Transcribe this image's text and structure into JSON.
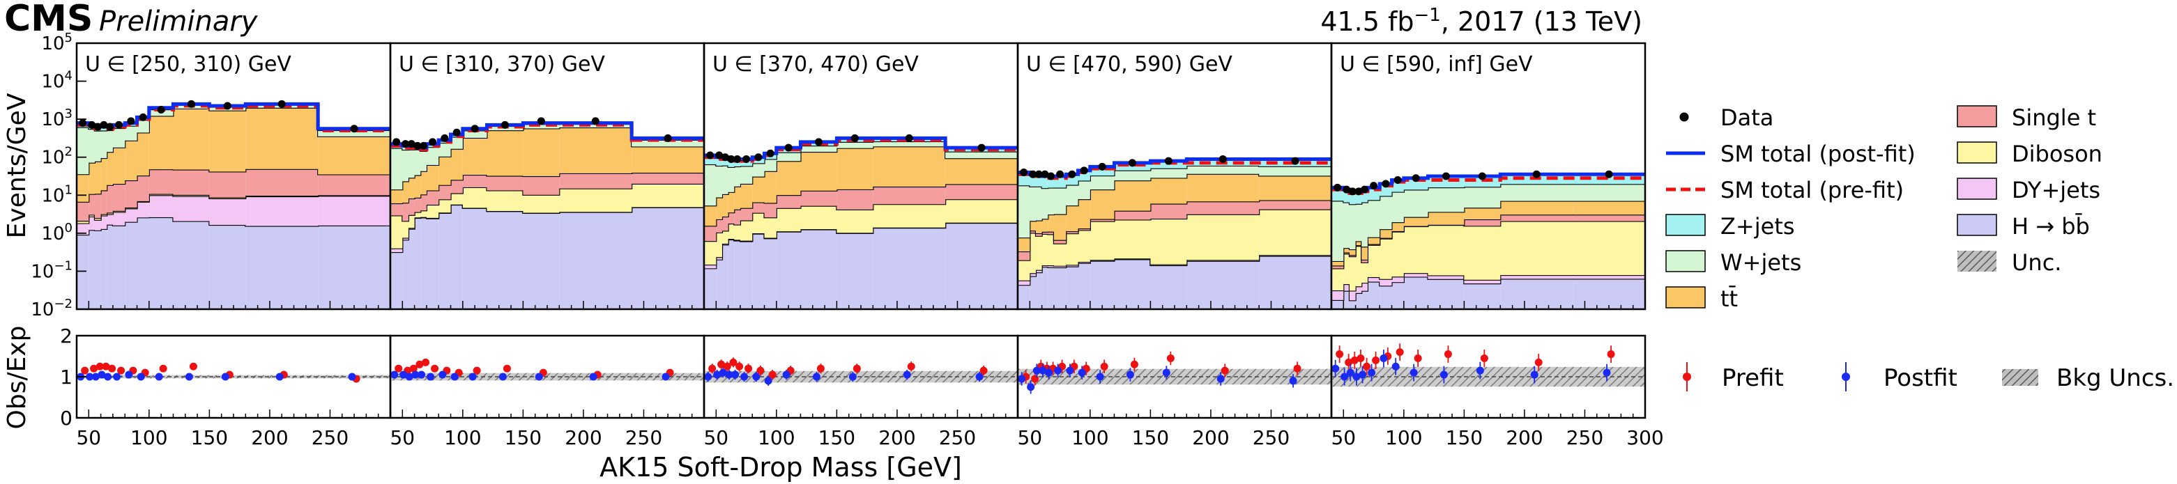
{
  "header": {
    "experiment": "CMS",
    "status": "Preliminary",
    "lumi": "41.5 fb",
    "lumi_exponent": "−1",
    "lumi_suffix": ", 2017 (13 TeV)"
  },
  "axes": {
    "ylabel_top": "Events/GeV",
    "ylabel_bottom": "Obs/Exp",
    "xlabel": "AK15 Soft-Drop Mass [GeV]"
  },
  "ratio_legend": {
    "prefit": "Prefit",
    "postfit": "Postfit",
    "unc": "Bkg Uncs."
  },
  "chart_data": {
    "type": "bar",
    "subtype": "stacked-step-histogram with data points and ratio panel",
    "x_range": [
      40,
      300
    ],
    "x_ticks": [
      50,
      100,
      150,
      200,
      250
    ],
    "x_ticks_last_panel": [
      50,
      100,
      150,
      200,
      250,
      300
    ],
    "y_scale": "log",
    "y_range": [
      0.01,
      100000
    ],
    "y_tick_exponents": [
      -2,
      -1,
      0,
      1,
      2,
      3,
      4,
      5
    ],
    "ratio_range": [
      0,
      2
    ],
    "ratio_ticks": [
      0,
      1,
      2
    ],
    "bin_edges": [
      40,
      50,
      55,
      60,
      65,
      70,
      80,
      90,
      100,
      120,
      150,
      180,
      240,
      300
    ],
    "bin_centers": [
      45,
      52.5,
      57.5,
      62.5,
      67.5,
      75,
      85,
      95,
      110,
      135,
      165,
      210,
      270
    ],
    "stack_order": [
      "H → bb̄",
      "DY+jets",
      "Diboson",
      "Single t",
      "tt̄",
      "W+jets",
      "Z+jets"
    ],
    "colors": {
      "Z+jets": "#a4f1f2",
      "W+jets": "#d4f6d4",
      "tt̄": "#fbc766",
      "Single t": "#f49ea0",
      "Diboson": "#fdf7a4",
      "DY+jets": "#f4c6f6",
      "H → bb̄": "#cccbf6",
      "unc": "#aaaaaa",
      "data": "#000000",
      "post_fit": "#0b2eef",
      "pre_fit": "#ee1111",
      "prefit_ratio": "#ee1111",
      "postfit_ratio": "#1a2af4"
    },
    "panels": [
      {
        "label": "U ∈ [250, 310) GeV",
        "stack_exp": {
          "H → bb̄": [
            -0.5,
            -0.4,
            -0.35,
            -0.3,
            -0.25,
            -0.2,
            -0.1,
            0.0,
            0.05,
            0.15,
            0.2,
            0.1,
            0.1
          ],
          "DY+jets": [
            -0.5,
            -0.3,
            -0.4,
            -0.2,
            -0.3,
            -0.1,
            0.0,
            0.2,
            0.5,
            0.7,
            0.8,
            0.8,
            0.8
          ],
          "Diboson": [
            -1.0,
            -1.0,
            -1.0,
            -1.0,
            -1.0,
            -1.0,
            -1.0,
            -1.0,
            -0.5,
            -0.3,
            -0.3,
            -0.5,
            -0.5
          ],
          "Single t": [
            0.2,
            0.4,
            0.5,
            0.6,
            0.7,
            0.8,
            0.9,
            1.0,
            1.2,
            1.4,
            1.5,
            1.5,
            1.3
          ],
          "tt̄": [
            1.0,
            1.3,
            1.4,
            1.5,
            1.6,
            1.8,
            2.0,
            2.2,
            2.7,
            3.1,
            3.2,
            3.2,
            2.4
          ],
          "W+jets": [
            2.3,
            2.2,
            2.2,
            2.2,
            2.1,
            2.2,
            2.2,
            2.3,
            2.4,
            2.5,
            2.6,
            2.5,
            2.1
          ],
          "Z+jets": [
            1.8,
            1.7,
            1.7,
            1.7,
            1.6,
            1.7,
            1.7,
            1.8,
            1.9,
            2.0,
            2.1,
            2.0,
            1.6
          ]
        },
        "post_fit_exp": [
          2.9,
          2.85,
          2.8,
          2.8,
          2.8,
          2.85,
          2.9,
          3.05,
          3.3,
          3.4,
          3.35,
          3.4,
          2.75
        ],
        "pre_fit_exp": [
          2.85,
          2.8,
          2.75,
          2.75,
          2.75,
          2.8,
          2.85,
          3.0,
          3.25,
          3.35,
          3.3,
          3.35,
          2.7
        ],
        "data_exp": [
          2.9,
          2.85,
          2.8,
          2.85,
          2.8,
          2.85,
          2.95,
          3.05,
          3.25,
          3.4,
          3.35,
          3.4,
          2.75
        ],
        "prefit_ratio": [
          1.15,
          1.2,
          1.25,
          1.25,
          1.2,
          1.15,
          1.15,
          1.1,
          1.2,
          1.25,
          1.05,
          1.05,
          0.95
        ],
        "postfit_ratio": [
          1.0,
          1.0,
          1.0,
          1.05,
          1.0,
          1.0,
          1.05,
          1.0,
          1.0,
          1.0,
          1.0,
          1.0,
          1.0
        ]
      },
      {
        "label": "U ∈ [310, 370) GeV",
        "stack_exp": {
          "H → bb̄": [
            -0.9,
            -0.6,
            -0.3,
            0.0,
            0.0,
            0.0,
            0.1,
            0.3,
            0.3,
            0.4,
            0.4,
            0.4,
            0.4
          ],
          "DY+jets": [
            -1.5,
            -1.5,
            -1.5,
            -1.5,
            -1.5,
            -1.5,
            -1.5,
            -1.5,
            -1.5,
            -1.5,
            -1.5,
            -1.5,
            -1.5
          ],
          "Diboson": [
            0.0,
            -0.3,
            -0.2,
            -0.4,
            -0.3,
            0.1,
            0.2,
            0.3,
            0.7,
            0.8,
            0.7,
            0.9,
            0.9
          ],
          "Single t": [
            0.1,
            0.2,
            0.3,
            0.3,
            0.4,
            0.5,
            0.6,
            0.7,
            0.9,
            1.1,
            1.2,
            1.2,
            1.0
          ],
          "tt̄": [
            0.5,
            0.8,
            0.9,
            1.0,
            1.1,
            1.3,
            1.5,
            1.7,
            2.1,
            2.5,
            2.6,
            2.6,
            1.9
          ],
          "W+jets": [
            1.8,
            1.7,
            1.7,
            1.7,
            1.6,
            1.7,
            1.7,
            1.8,
            1.9,
            2.0,
            2.1,
            2.0,
            1.7
          ],
          "Z+jets": [
            1.3,
            1.2,
            1.2,
            1.2,
            1.1,
            1.2,
            1.2,
            1.3,
            1.4,
            1.5,
            1.6,
            1.5,
            1.2
          ]
        },
        "post_fit_exp": [
          2.35,
          2.3,
          2.3,
          2.3,
          2.25,
          2.35,
          2.45,
          2.6,
          2.75,
          2.85,
          2.9,
          2.9,
          2.5
        ],
        "pre_fit_exp": [
          2.3,
          2.25,
          2.25,
          2.25,
          2.2,
          2.3,
          2.4,
          2.55,
          2.7,
          2.8,
          2.85,
          2.85,
          2.45
        ],
        "data_exp": [
          2.4,
          2.35,
          2.35,
          2.3,
          2.3,
          2.4,
          2.5,
          2.65,
          2.75,
          2.85,
          2.95,
          2.95,
          2.5
        ],
        "prefit_ratio": [
          1.2,
          1.15,
          1.2,
          1.3,
          1.35,
          1.2,
          1.15,
          1.1,
          1.15,
          1.2,
          1.1,
          1.05,
          1.1
        ],
        "postfit_ratio": [
          1.05,
          1.05,
          1.0,
          1.05,
          1.05,
          1.0,
          1.05,
          1.0,
          1.0,
          1.0,
          1.0,
          1.0,
          1.0
        ]
      },
      {
        "label": "U ∈ [370, 470) GeV",
        "stack_exp": {
          "H → bb̄": [
            -1.2,
            -1.0,
            -0.6,
            -0.4,
            -0.5,
            -0.4,
            -0.2,
            -0.3,
            -0.1,
            0.0,
            -0.1,
            0.0,
            0.0
          ],
          "DY+jets": [
            -1.8,
            -1.8,
            -1.8,
            -1.8,
            -1.8,
            -1.8,
            -1.8,
            -1.8,
            -1.8,
            -1.8,
            -1.8,
            -1.8,
            -1.8
          ],
          "Diboson": [
            -0.6,
            -0.4,
            -0.5,
            -0.2,
            -0.3,
            0.0,
            0.2,
            0.1,
            0.4,
            0.5,
            0.4,
            0.5,
            0.5
          ],
          "Single t": [
            -0.3,
            -0.2,
            -0.1,
            0.0,
            0.1,
            0.2,
            0.3,
            0.4,
            0.6,
            0.8,
            0.9,
            0.9,
            0.8
          ],
          "tt̄": [
            0.3,
            0.5,
            0.6,
            0.7,
            0.8,
            1.0,
            1.2,
            1.4,
            1.7,
            2.0,
            2.1,
            2.1,
            1.6
          ],
          "W+jets": [
            1.5,
            1.4,
            1.4,
            1.4,
            1.3,
            1.4,
            1.4,
            1.5,
            1.6,
            1.7,
            1.8,
            1.7,
            1.4
          ],
          "Z+jets": [
            1.4,
            1.3,
            1.3,
            1.3,
            1.2,
            1.3,
            1.3,
            1.4,
            1.5,
            1.6,
            1.7,
            1.6,
            1.3
          ]
        },
        "post_fit_exp": [
          2.05,
          2.0,
          2.0,
          1.95,
          1.95,
          1.95,
          2.0,
          2.1,
          2.25,
          2.4,
          2.5,
          2.5,
          2.25
        ],
        "pre_fit_exp": [
          2.0,
          1.95,
          1.95,
          1.9,
          1.9,
          1.9,
          1.95,
          2.05,
          2.2,
          2.35,
          2.45,
          2.45,
          2.2
        ],
        "data_exp": [
          2.05,
          2.05,
          2.0,
          1.95,
          1.95,
          1.95,
          2.0,
          2.1,
          2.25,
          2.4,
          2.5,
          2.5,
          2.25
        ],
        "prefit_ratio": [
          1.2,
          1.3,
          1.25,
          1.35,
          1.25,
          1.2,
          1.15,
          1.05,
          1.15,
          1.2,
          1.2,
          1.25,
          1.15
        ],
        "postfit_ratio": [
          1.0,
          1.05,
          1.1,
          1.05,
          1.05,
          1.0,
          1.0,
          0.9,
          1.05,
          1.0,
          1.0,
          1.05,
          1.0
        ]
      },
      {
        "label": "U ∈ [470, 590) GeV",
        "stack_exp": {
          "H → bb̄": [
            -1.5,
            -1.3,
            -1.2,
            -1.0,
            -1.1,
            -1.0,
            -1.0,
            -0.9,
            -0.8,
            -0.7,
            -0.8,
            -0.8,
            -0.8
          ],
          "DY+jets": [
            -2.0,
            -2.0,
            -2.0,
            -2.0,
            -2.0,
            -2.0,
            -2.0,
            -2.0,
            -2.0,
            -2.0,
            -2.0,
            -2.0,
            -2.0
          ],
          "Diboson": [
            -1.0,
            -0.2,
            -0.3,
            -0.2,
            -0.3,
            -0.5,
            -0.2,
            -0.1,
            0.2,
            0.3,
            0.4,
            0.4,
            0.4
          ],
          "Single t": [
            -1.0,
            -1.0,
            -1.0,
            -1.0,
            -1.0,
            -1.0,
            -1.0,
            -1.0,
            -0.6,
            0.2,
            0.6,
            0.5,
            0.3
          ],
          "tt̄": [
            -0.5,
            -0.2,
            -0.1,
            0.0,
            0.1,
            0.3,
            0.5,
            0.7,
            1.0,
            1.3,
            1.4,
            1.4,
            1.2
          ],
          "W+jets": [
            1.1,
            1.0,
            1.0,
            1.0,
            0.9,
            1.0,
            1.0,
            1.1,
            1.2,
            1.3,
            1.4,
            1.3,
            1.2
          ],
          "Z+jets": [
            1.2,
            1.1,
            1.1,
            1.1,
            1.0,
            1.1,
            1.1,
            1.2,
            1.3,
            1.4,
            1.5,
            1.4,
            1.3
          ]
        },
        "post_fit_exp": [
          1.6,
          1.55,
          1.55,
          1.5,
          1.5,
          1.5,
          1.55,
          1.65,
          1.75,
          1.85,
          1.9,
          1.95,
          1.95
        ],
        "pre_fit_exp": [
          1.55,
          1.5,
          1.5,
          1.45,
          1.45,
          1.45,
          1.5,
          1.6,
          1.7,
          1.8,
          1.85,
          1.85,
          1.85
        ],
        "data_exp": [
          1.6,
          1.55,
          1.55,
          1.55,
          1.5,
          1.55,
          1.55,
          1.65,
          1.75,
          1.85,
          1.9,
          1.95,
          1.9
        ],
        "prefit_ratio": [
          1.0,
          0.95,
          1.25,
          1.2,
          1.2,
          1.25,
          1.25,
          1.2,
          1.25,
          1.3,
          1.45,
          1.15,
          1.2
        ],
        "postfit_ratio": [
          0.95,
          0.75,
          1.15,
          1.15,
          1.1,
          1.15,
          1.15,
          1.1,
          1.0,
          1.05,
          1.1,
          0.95,
          0.9
        ]
      },
      {
        "label": "U ∈ [590, inf] GeV",
        "stack_exp": {
          "H → bb̄": [
            -1.9,
            -1.7,
            -1.9,
            -1.7,
            -1.8,
            -1.5,
            -1.7,
            -1.6,
            -1.4,
            -1.4,
            -1.4,
            -1.4,
            -1.4
          ],
          "DY+jets": [
            -2.0,
            -2.0,
            -2.0,
            -2.0,
            -2.0,
            -2.0,
            -2.0,
            -2.0,
            -2.0,
            -2.0,
            -2.0,
            -2.0,
            -2.0
          ],
          "Diboson": [
            -1.2,
            -0.8,
            -0.8,
            -0.5,
            -1.2,
            -0.6,
            -0.5,
            -0.3,
            -0.1,
            0.0,
            0.1,
            0.1,
            0.1
          ],
          "Single t": [
            -1.8,
            -1.8,
            -1.8,
            -1.8,
            -1.8,
            -1.8,
            -1.8,
            -1.8,
            -1.8,
            -1.8,
            -0.2,
            -0.2,
            -0.2
          ],
          "tt̄": [
            -1.5,
            -1.2,
            -1.1,
            -1.0,
            -0.9,
            -0.8,
            -0.6,
            -0.4,
            -0.2,
            0.1,
            0.3,
            0.4,
            0.4
          ],
          "W+jets": [
            0.7,
            0.6,
            0.6,
            0.6,
            0.5,
            0.6,
            0.6,
            0.7,
            0.8,
            0.9,
            1.0,
            0.9,
            0.9
          ],
          "Z+jets": [
            0.8,
            0.7,
            0.7,
            0.7,
            0.6,
            0.7,
            0.7,
            0.8,
            0.9,
            1.0,
            1.1,
            1.0,
            1.0
          ]
        },
        "post_fit_exp": [
          1.2,
          1.15,
          1.1,
          1.1,
          1.15,
          1.2,
          1.3,
          1.4,
          1.45,
          1.5,
          1.5,
          1.55,
          1.55
        ],
        "pre_fit_exp": [
          1.15,
          1.1,
          1.05,
          1.05,
          1.1,
          1.15,
          1.25,
          1.35,
          1.4,
          1.4,
          1.4,
          1.45,
          1.45
        ],
        "data_exp": [
          1.2,
          1.15,
          1.1,
          1.1,
          1.15,
          1.25,
          1.3,
          1.4,
          1.45,
          1.5,
          1.5,
          1.55,
          1.55
        ],
        "prefit_ratio": [
          1.55,
          1.35,
          1.4,
          1.45,
          1.25,
          1.4,
          1.5,
          1.6,
          1.45,
          1.55,
          1.45,
          1.35,
          1.55
        ],
        "postfit_ratio": [
          1.2,
          1.0,
          1.1,
          1.0,
          1.05,
          1.1,
          1.45,
          1.25,
          1.1,
          1.05,
          1.15,
          1.05,
          1.1
        ]
      }
    ],
    "legend": {
      "placement": "right",
      "items": [
        {
          "label": "Data",
          "kind": "point",
          "color": "#000000"
        },
        {
          "label": "Single t",
          "kind": "patch",
          "color": "#f49ea0"
        },
        {
          "label": "SM total (post-fit)",
          "kind": "line",
          "color": "#0b2eef"
        },
        {
          "label": "Diboson",
          "kind": "patch",
          "color": "#fdf7a4"
        },
        {
          "label": "SM total (pre-fit)",
          "kind": "dashed",
          "color": "#ee1111"
        },
        {
          "label": "DY+jets",
          "kind": "patch",
          "color": "#f4c6f6"
        },
        {
          "label": "Z+jets",
          "kind": "patch",
          "color": "#a4f1f2"
        },
        {
          "label": "H → bb̄",
          "kind": "patch",
          "color": "#cccbf6"
        },
        {
          "label": "W+jets",
          "kind": "patch",
          "color": "#d4f6d4"
        },
        {
          "label": "Unc.",
          "kind": "hatch",
          "color": "#aaaaaa"
        },
        {
          "label": "tt̄",
          "kind": "patch",
          "color": "#fbc766"
        }
      ]
    }
  }
}
